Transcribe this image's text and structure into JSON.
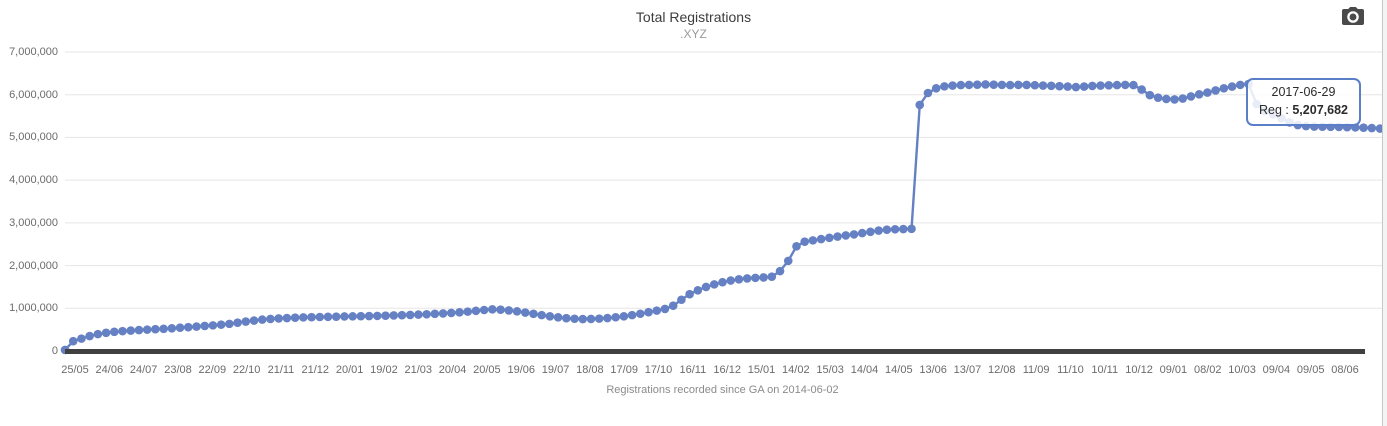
{
  "header": {
    "title": "Total Registrations",
    "subtitle": ".XYZ"
  },
  "toolbar": {
    "export_icon": "camera-icon"
  },
  "tooltip": {
    "date": "2017-06-29",
    "label": "Reg : ",
    "value": "5,207,682"
  },
  "colors": {
    "dot": "#6581c3",
    "line": "#6581c3",
    "tooltip_border": "#5b7ec9",
    "axis_line": "#404040",
    "grid_line": "#e5e5e5",
    "tick_text": "#6b6b6b",
    "caption_text": "#8b8b8b",
    "icon": "#4a4a4a"
  },
  "chart_data": {
    "type": "scatter",
    "title": "Total Registrations",
    "subtitle": ".XYZ",
    "xlabel": "Registrations recorded since GA on 2014-06-02",
    "ylabel": "",
    "ylim": [
      0,
      7000000
    ],
    "grid": true,
    "legend": "none",
    "y_tick_labels": [
      "7,000,000",
      "6,000,000",
      "5,000,000",
      "4,000,000",
      "3,000,000",
      "2,000,000",
      "1,000,000",
      "0"
    ],
    "y_tick_values": [
      7000000,
      6000000,
      5000000,
      4000000,
      3000000,
      2000000,
      1000000,
      0
    ],
    "x_tick_labels": [
      "25/05",
      "24/06",
      "24/07",
      "23/08",
      "22/09",
      "22/10",
      "21/11",
      "21/12",
      "20/01",
      "19/02",
      "21/03",
      "20/04",
      "20/05",
      "19/06",
      "19/07",
      "18/08",
      "17/09",
      "17/10",
      "16/11",
      "16/12",
      "15/01",
      "14/02",
      "15/03",
      "14/04",
      "14/05",
      "13/06",
      "13/07",
      "12/08",
      "11/09",
      "11/10",
      "10/11",
      "10/12",
      "09/01",
      "08/02",
      "10/03",
      "09/04",
      "09/05",
      "08/06"
    ],
    "series": [
      {
        "name": "Registrations",
        "cadence": "weekly since GA 2014-06-02",
        "values": [
          25000,
          230000,
          290000,
          350000,
          395000,
          425000,
          450000,
          465000,
          478000,
          490000,
          500000,
          510000,
          520000,
          532000,
          545000,
          558000,
          572000,
          586000,
          600000,
          617000,
          635000,
          662000,
          690000,
          713000,
          735000,
          750000,
          762000,
          772000,
          780000,
          787000,
          792000,
          796000,
          800000,
          804000,
          808000,
          811000,
          815000,
          818000,
          822000,
          827000,
          832000,
          838000,
          845000,
          852000,
          860000,
          870000,
          880000,
          892000,
          905000,
          922000,
          940000,
          960000,
          975000,
          968000,
          950000,
          928000,
          900000,
          870000,
          840000,
          812000,
          788000,
          768000,
          755000,
          748000,
          750000,
          758000,
          772000,
          790000,
          812000,
          840000,
          872000,
          908000,
          945000,
          985000,
          1060000,
          1200000,
          1330000,
          1420000,
          1500000,
          1560000,
          1610000,
          1650000,
          1678000,
          1698000,
          1712000,
          1722000,
          1740000,
          1870000,
          2110000,
          2450000,
          2560000,
          2590000,
          2620000,
          2650000,
          2680000,
          2705000,
          2730000,
          2760000,
          2790000,
          2820000,
          2840000,
          2850000,
          2855000,
          2860000,
          5760000,
          6040000,
          6150000,
          6195000,
          6215000,
          6225000,
          6230000,
          6235000,
          6240000,
          6235000,
          6230000,
          6225000,
          6230000,
          6228000,
          6222000,
          6215000,
          6208000,
          6200000,
          6190000,
          6180000,
          6190000,
          6205000,
          6215000,
          6220000,
          6225000,
          6230000,
          6225000,
          6120000,
          5990000,
          5930000,
          5900000,
          5890000,
          5910000,
          5960000,
          6010000,
          6050000,
          6100000,
          6150000,
          6190000,
          6230000,
          6250000,
          5780000,
          5620000,
          5540000,
          5450000,
          5350000,
          5290000,
          5265000,
          5255000,
          5250000,
          5248000,
          5245000,
          5240000,
          5235000,
          5228000,
          5220000,
          5207682
        ]
      }
    ],
    "tooltip_point": {
      "date": "2017-06-29",
      "value": 5207682
    }
  }
}
